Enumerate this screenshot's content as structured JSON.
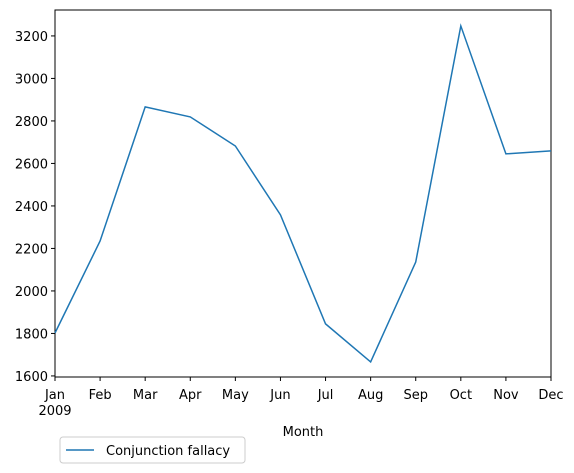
{
  "chart_data": {
    "type": "line",
    "categories": [
      "Jan",
      "Feb",
      "Mar",
      "Apr",
      "May",
      "Jun",
      "Jul",
      "Aug",
      "Sep",
      "Oct",
      "Nov",
      "Dec"
    ],
    "x_sublabel": "2009",
    "xlabel": "Month",
    "series": [
      {
        "name": "Conjunction fallacy",
        "color": "#1f77b4",
        "values": [
          1802,
          2235,
          2866,
          2819,
          2682,
          2358,
          1845,
          1666,
          2136,
          3247,
          2645,
          2659
        ]
      }
    ],
    "ylim": [
      1595,
      3322
    ],
    "yticks": [
      1600,
      1800,
      2000,
      2200,
      2400,
      2600,
      2800,
      3000,
      3200
    ],
    "legend": "lower left outside"
  }
}
